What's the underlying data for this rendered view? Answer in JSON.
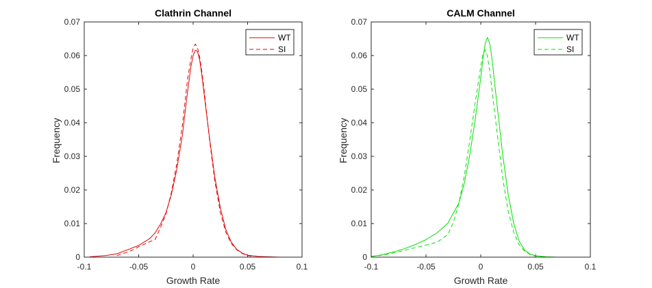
{
  "chart_data": [
    {
      "type": "line",
      "title": "Clathrin Channel",
      "xlabel": "Growth Rate",
      "ylabel": "Frequency",
      "xlim": [
        -0.1,
        0.1
      ],
      "ylim": [
        0,
        0.07
      ],
      "xticks": [
        "-0.1",
        "-0.05",
        "0",
        "0.05",
        "0.1"
      ],
      "yticks": [
        "0",
        "0.01",
        "0.02",
        "0.03",
        "0.04",
        "0.05",
        "0.06",
        "0.07"
      ],
      "legend_position": "top-right",
      "series": [
        {
          "name": "WT",
          "color": "#e00000",
          "style": "solid",
          "x": [
            -0.095,
            -0.08,
            -0.07,
            -0.06,
            -0.05,
            -0.04,
            -0.035,
            -0.03,
            -0.025,
            -0.02,
            -0.015,
            -0.01,
            -0.005,
            -0.002,
            0.0,
            0.002,
            0.004,
            0.006,
            0.008,
            0.01,
            0.015,
            0.02,
            0.025,
            0.03,
            0.035,
            0.04,
            0.045,
            0.05,
            0.06,
            0.07,
            0.08,
            0.09
          ],
          "y": [
            0.0001,
            0.0005,
            0.001,
            0.0022,
            0.0035,
            0.0055,
            0.0072,
            0.0098,
            0.0132,
            0.0186,
            0.0261,
            0.036,
            0.0495,
            0.0567,
            0.06,
            0.0616,
            0.0612,
            0.0588,
            0.0542,
            0.0488,
            0.0355,
            0.0236,
            0.0146,
            0.0082,
            0.0045,
            0.0023,
            0.0012,
            0.0006,
            0.0002,
            0.0001,
            0.0,
            0.0
          ]
        },
        {
          "name": "SI",
          "color": "#e00000",
          "style": "dashed",
          "x": [
            -0.07,
            -0.06,
            -0.055,
            -0.05,
            -0.045,
            -0.04,
            -0.035,
            -0.03,
            -0.025,
            -0.02,
            -0.015,
            -0.01,
            -0.005,
            -0.002,
            0.0,
            0.002,
            0.004,
            0.006,
            0.008,
            0.01,
            0.015,
            0.02,
            0.025,
            0.03,
            0.035,
            0.04,
            0.045,
            0.05,
            0.055
          ],
          "y": [
            0.0005,
            0.0015,
            0.0022,
            0.0031,
            0.0038,
            0.0046,
            0.0052,
            0.0088,
            0.0128,
            0.0192,
            0.0278,
            0.039,
            0.0532,
            0.059,
            0.0622,
            0.0634,
            0.0623,
            0.0596,
            0.0552,
            0.05,
            0.035,
            0.0225,
            0.0132,
            0.0074,
            0.0041,
            0.0022,
            0.0011,
            0.0005,
            0.0002
          ]
        }
      ]
    },
    {
      "type": "line",
      "title": "CALM Channel",
      "xlabel": "Growth Rate",
      "ylabel": "Frequency",
      "xlim": [
        -0.1,
        0.1
      ],
      "ylim": [
        0,
        0.07
      ],
      "xticks": [
        "-0.1",
        "-0.05",
        "0",
        "0.05",
        "0.1"
      ],
      "yticks": [
        "0",
        "0.01",
        "0.02",
        "0.03",
        "0.04",
        "0.05",
        "0.06",
        "0.07"
      ],
      "legend_position": "top-right",
      "series": [
        {
          "name": "WT",
          "color": "#00e000",
          "style": "solid",
          "x": [
            -0.1,
            -0.09,
            -0.08,
            -0.07,
            -0.06,
            -0.05,
            -0.04,
            -0.03,
            -0.02,
            -0.015,
            -0.01,
            -0.005,
            0.0,
            0.002,
            0.004,
            0.006,
            0.008,
            0.01,
            0.015,
            0.02,
            0.025,
            0.03,
            0.035,
            0.04,
            0.045,
            0.05,
            0.06,
            0.07,
            0.08
          ],
          "y": [
            0.0002,
            0.0007,
            0.0015,
            0.0025,
            0.0037,
            0.0052,
            0.0072,
            0.0101,
            0.0161,
            0.022,
            0.0305,
            0.0412,
            0.0535,
            0.0589,
            0.0635,
            0.0654,
            0.0638,
            0.0597,
            0.0449,
            0.0305,
            0.0187,
            0.0101,
            0.0048,
            0.0021,
            0.0009,
            0.0004,
            0.0001,
            0.0,
            0.0
          ]
        },
        {
          "name": "SI",
          "color": "#00e000",
          "style": "dashed",
          "x": [
            -0.1,
            -0.09,
            -0.08,
            -0.07,
            -0.06,
            -0.05,
            -0.04,
            -0.03,
            -0.025,
            -0.02,
            -0.015,
            -0.01,
            -0.005,
            0.0,
            0.002,
            0.004,
            0.006,
            0.008,
            0.01,
            0.015,
            0.02,
            0.025,
            0.03,
            0.035,
            0.04,
            0.045,
            0.05,
            0.06
          ],
          "y": [
            0.0002,
            0.0006,
            0.0012,
            0.002,
            0.0028,
            0.0036,
            0.0044,
            0.0067,
            0.0104,
            0.016,
            0.0242,
            0.0348,
            0.0462,
            0.0568,
            0.0606,
            0.0617,
            0.0599,
            0.0558,
            0.0505,
            0.0368,
            0.0236,
            0.0137,
            0.0074,
            0.0037,
            0.0018,
            0.0008,
            0.0003,
            0.0001
          ]
        }
      ]
    }
  ]
}
